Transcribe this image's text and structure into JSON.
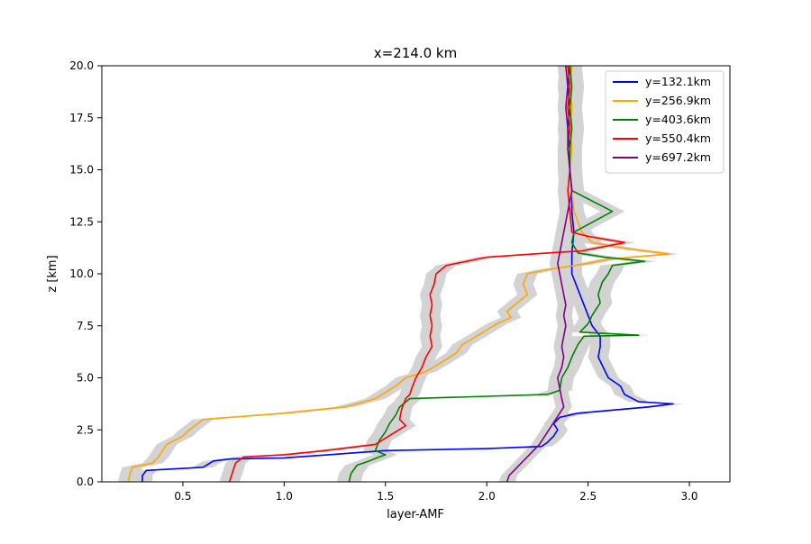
{
  "chart_data": {
    "type": "line",
    "title": "x=214.0 km",
    "xlabel": "layer-AMF",
    "ylabel": "z [km]",
    "xlim": [
      0.1,
      3.2
    ],
    "ylim": [
      0,
      20
    ],
    "x_ticks": [
      0.5,
      1.0,
      1.5,
      2.0,
      2.5,
      3.0
    ],
    "x_tick_labels": [
      "0.5",
      "1.0",
      "1.5",
      "2.0",
      "2.5",
      "3.0"
    ],
    "y_ticks": [
      0,
      2.5,
      5,
      7.5,
      10,
      12.5,
      15,
      17.5,
      20
    ],
    "y_tick_labels": [
      "0.0",
      "2.5",
      "5.0",
      "7.5",
      "10.0",
      "12.5",
      "15.0",
      "17.5",
      "20.0"
    ],
    "grid": false,
    "legend_position": "top-right",
    "uncertainty_band_color": "#d3d3d3",
    "series": [
      {
        "name": "y=132.1km",
        "color": "#0000ff",
        "points": [
          [
            0.3,
            0
          ],
          [
            0.3,
            0.3
          ],
          [
            0.32,
            0.55
          ],
          [
            0.6,
            0.7
          ],
          [
            0.65,
            1.0
          ],
          [
            0.73,
            1.1
          ],
          [
            1.0,
            1.15
          ],
          [
            1.5,
            1.5
          ],
          [
            2.0,
            1.6
          ],
          [
            2.27,
            1.7
          ],
          [
            2.3,
            1.9
          ],
          [
            2.33,
            2.2
          ],
          [
            2.35,
            2.5
          ],
          [
            2.33,
            2.8
          ],
          [
            2.36,
            3.1
          ],
          [
            2.45,
            3.3
          ],
          [
            2.8,
            3.6
          ],
          [
            2.92,
            3.75
          ],
          [
            2.75,
            3.85
          ],
          [
            2.68,
            4.2
          ],
          [
            2.66,
            4.6
          ],
          [
            2.6,
            5.0
          ],
          [
            2.58,
            5.4
          ],
          [
            2.55,
            6.0
          ],
          [
            2.56,
            6.5
          ],
          [
            2.56,
            7.0
          ],
          [
            2.52,
            7.5
          ],
          [
            2.5,
            8.0
          ],
          [
            2.48,
            8.5
          ],
          [
            2.46,
            9.0
          ],
          [
            2.44,
            9.5
          ],
          [
            2.42,
            10.0
          ],
          [
            2.42,
            11.0
          ],
          [
            2.43,
            12.0
          ],
          [
            2.42,
            13.0
          ],
          [
            2.42,
            14.0
          ],
          [
            2.41,
            15.0
          ],
          [
            2.41,
            16.0
          ],
          [
            2.4,
            17.0
          ],
          [
            2.41,
            18.0
          ],
          [
            2.4,
            19.0
          ],
          [
            2.41,
            20.0
          ]
        ],
        "band_half_width": 0.05
      },
      {
        "name": "y=256.9km",
        "color": "#ffa500",
        "points": [
          [
            0.23,
            0
          ],
          [
            0.24,
            0.4
          ],
          [
            0.25,
            0.7
          ],
          [
            0.35,
            0.9
          ],
          [
            0.38,
            1.2
          ],
          [
            0.4,
            1.5
          ],
          [
            0.42,
            1.8
          ],
          [
            0.46,
            2.0
          ],
          [
            0.5,
            2.2
          ],
          [
            0.52,
            2.4
          ],
          [
            0.56,
            2.7
          ],
          [
            0.6,
            3.0
          ],
          [
            1.0,
            3.3
          ],
          [
            1.3,
            3.6
          ],
          [
            1.45,
            4.0
          ],
          [
            1.5,
            4.3
          ],
          [
            1.55,
            4.6
          ],
          [
            1.6,
            5.0
          ],
          [
            1.7,
            5.3
          ],
          [
            1.77,
            5.7
          ],
          [
            1.85,
            6.2
          ],
          [
            1.88,
            6.6
          ],
          [
            1.95,
            7.0
          ],
          [
            2.0,
            7.3
          ],
          [
            2.05,
            7.6
          ],
          [
            2.12,
            7.9
          ],
          [
            2.1,
            8.2
          ],
          [
            2.15,
            8.6
          ],
          [
            2.2,
            9.0
          ],
          [
            2.18,
            9.5
          ],
          [
            2.2,
            10.0
          ],
          [
            2.3,
            10.2
          ],
          [
            2.5,
            10.5
          ],
          [
            2.6,
            10.7
          ],
          [
            2.9,
            10.95
          ],
          [
            2.7,
            11.2
          ],
          [
            2.52,
            11.5
          ],
          [
            2.47,
            12.0
          ],
          [
            2.45,
            12.5
          ],
          [
            2.43,
            13.0
          ],
          [
            2.42,
            14.0
          ],
          [
            2.41,
            15.0
          ],
          [
            2.42,
            16.0
          ],
          [
            2.41,
            17.0
          ],
          [
            2.42,
            18.0
          ],
          [
            2.41,
            19.0
          ],
          [
            2.42,
            20.0
          ]
        ],
        "band_half_width": 0.05
      },
      {
        "name": "y=403.6km",
        "color": "#008000",
        "points": [
          [
            1.32,
            0
          ],
          [
            1.33,
            0.4
          ],
          [
            1.36,
            0.8
          ],
          [
            1.42,
            1.0
          ],
          [
            1.47,
            1.2
          ],
          [
            1.5,
            1.3
          ],
          [
            1.45,
            1.5
          ],
          [
            1.47,
            2.0
          ],
          [
            1.5,
            2.4
          ],
          [
            1.52,
            2.8
          ],
          [
            1.55,
            3.2
          ],
          [
            1.57,
            3.6
          ],
          [
            1.62,
            4.0
          ],
          [
            2.3,
            4.2
          ],
          [
            2.36,
            4.4
          ],
          [
            2.37,
            5.0
          ],
          [
            2.4,
            5.5
          ],
          [
            2.42,
            6.0
          ],
          [
            2.45,
            6.6
          ],
          [
            2.48,
            7.0
          ],
          [
            2.75,
            7.05
          ],
          [
            2.46,
            7.2
          ],
          [
            2.5,
            7.6
          ],
          [
            2.52,
            8.0
          ],
          [
            2.56,
            8.6
          ],
          [
            2.55,
            9.0
          ],
          [
            2.57,
            9.6
          ],
          [
            2.6,
            10.0
          ],
          [
            2.62,
            10.4
          ],
          [
            2.78,
            10.6
          ],
          [
            2.58,
            10.8
          ],
          [
            2.45,
            11.0
          ],
          [
            2.42,
            11.5
          ],
          [
            2.43,
            12.0
          ],
          [
            2.62,
            13.0
          ],
          [
            2.42,
            14.0
          ],
          [
            2.41,
            15.0
          ],
          [
            2.41,
            16.0
          ],
          [
            2.42,
            17.0
          ],
          [
            2.41,
            18.0
          ],
          [
            2.42,
            19.0
          ],
          [
            2.41,
            20.0
          ]
        ],
        "band_half_width": 0.06
      },
      {
        "name": "y=550.4km",
        "color": "#ff0000",
        "points": [
          [
            0.73,
            0
          ],
          [
            0.74,
            0.3
          ],
          [
            0.75,
            0.6
          ],
          [
            0.76,
            0.9
          ],
          [
            0.8,
            1.2
          ],
          [
            1.0,
            1.3
          ],
          [
            1.2,
            1.5
          ],
          [
            1.45,
            1.8
          ],
          [
            1.5,
            2.1
          ],
          [
            1.55,
            2.4
          ],
          [
            1.6,
            2.7
          ],
          [
            1.57,
            3.0
          ],
          [
            1.58,
            3.5
          ],
          [
            1.6,
            4.0
          ],
          [
            1.62,
            4.2
          ],
          [
            1.63,
            4.5
          ],
          [
            1.65,
            5.0
          ],
          [
            1.68,
            5.5
          ],
          [
            1.7,
            6.0
          ],
          [
            1.73,
            6.5
          ],
          [
            1.72,
            7.0
          ],
          [
            1.73,
            7.5
          ],
          [
            1.72,
            8.0
          ],
          [
            1.73,
            8.5
          ],
          [
            1.72,
            9.0
          ],
          [
            1.74,
            9.5
          ],
          [
            1.75,
            10.0
          ],
          [
            1.8,
            10.4
          ],
          [
            2.0,
            10.8
          ],
          [
            2.3,
            11.0
          ],
          [
            2.47,
            11.1
          ],
          [
            2.68,
            11.5
          ],
          [
            2.5,
            11.8
          ],
          [
            2.42,
            12.0
          ],
          [
            2.41,
            13.0
          ],
          [
            2.4,
            14.0
          ],
          [
            2.41,
            15.0
          ],
          [
            2.4,
            16.0
          ],
          [
            2.41,
            17.0
          ],
          [
            2.4,
            18.0
          ],
          [
            2.41,
            19.0
          ],
          [
            2.4,
            20.0
          ]
        ],
        "band_half_width": 0.05
      },
      {
        "name": "y=697.2km",
        "color": "#800080",
        "points": [
          [
            2.1,
            0
          ],
          [
            2.11,
            0.3
          ],
          [
            2.14,
            0.6
          ],
          [
            2.17,
            0.9
          ],
          [
            2.2,
            1.2
          ],
          [
            2.23,
            1.5
          ],
          [
            2.26,
            1.8
          ],
          [
            2.28,
            2.1
          ],
          [
            2.3,
            2.4
          ],
          [
            2.32,
            2.7
          ],
          [
            2.34,
            3.0
          ],
          [
            2.36,
            3.3
          ],
          [
            2.38,
            3.6
          ],
          [
            2.37,
            4.0
          ],
          [
            2.36,
            4.5
          ],
          [
            2.35,
            5.0
          ],
          [
            2.37,
            5.5
          ],
          [
            2.38,
            6.0
          ],
          [
            2.37,
            6.5
          ],
          [
            2.38,
            7.0
          ],
          [
            2.39,
            7.5
          ],
          [
            2.38,
            8.0
          ],
          [
            2.39,
            8.5
          ],
          [
            2.38,
            9.0
          ],
          [
            2.37,
            9.5
          ],
          [
            2.36,
            10.0
          ],
          [
            2.35,
            10.5
          ],
          [
            2.36,
            11.0
          ],
          [
            2.37,
            11.5
          ],
          [
            2.38,
            12.0
          ],
          [
            2.39,
            12.5
          ],
          [
            2.4,
            13.0
          ],
          [
            2.41,
            13.5
          ],
          [
            2.42,
            14.0
          ],
          [
            2.41,
            15.0
          ],
          [
            2.4,
            16.0
          ],
          [
            2.4,
            17.0
          ],
          [
            2.39,
            18.0
          ],
          [
            2.4,
            19.0
          ],
          [
            2.39,
            20.0
          ]
        ],
        "band_half_width": 0.04
      }
    ]
  }
}
